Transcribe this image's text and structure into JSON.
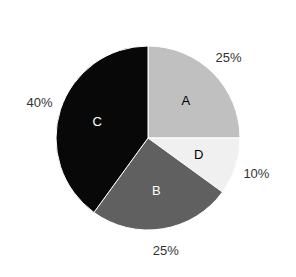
{
  "chart_data": {
    "type": "pie",
    "categories": [
      "A",
      "D",
      "B",
      "C"
    ],
    "values": [
      25,
      10,
      25,
      40
    ],
    "value_labels": [
      "25%",
      "10%",
      "25%",
      "40%"
    ],
    "colors": [
      "#c0c0c0",
      "#f0f0f0",
      "#606060",
      "#080808"
    ],
    "data_labels": true
  }
}
